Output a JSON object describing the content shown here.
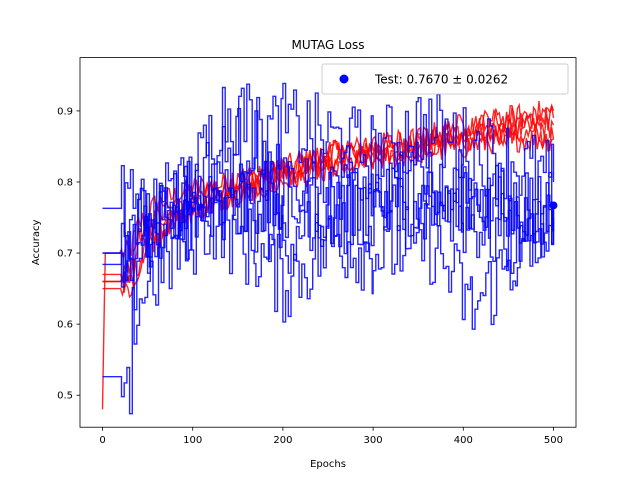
{
  "chart_data": {
    "type": "line",
    "title": "MUTAG Loss",
    "xlabel": "Epochs",
    "ylabel": "Accuracy",
    "xlim": [
      -25,
      525
    ],
    "ylim": [
      0.455,
      0.975
    ],
    "xticks": [
      0,
      100,
      200,
      300,
      400,
      500
    ],
    "yticks": [
      0.5,
      0.6,
      0.7,
      0.8,
      0.9
    ],
    "grid": false,
    "legend_position": "top-right",
    "colors": {
      "train": "#ff0000",
      "test": "#0000ff"
    },
    "test_point": {
      "x": 500,
      "y": 0.767
    },
    "legend": {
      "label": "Test: 0.7670 ± 0.0262"
    },
    "series": [
      {
        "group": "train",
        "values": [
          [
            0,
            0.48
          ],
          [
            3,
            0.7
          ],
          [
            30,
            0.7
          ],
          [
            40,
            0.74
          ],
          [
            60,
            0.77
          ],
          [
            100,
            0.79
          ],
          [
            150,
            0.8
          ],
          [
            200,
            0.82
          ],
          [
            250,
            0.84
          ],
          [
            300,
            0.85
          ],
          [
            350,
            0.86
          ],
          [
            400,
            0.86
          ],
          [
            450,
            0.87
          ],
          [
            500,
            0.88
          ]
        ]
      },
      {
        "group": "train",
        "values": [
          [
            0,
            0.67
          ],
          [
            30,
            0.67
          ],
          [
            40,
            0.72
          ],
          [
            60,
            0.75
          ],
          [
            100,
            0.77
          ],
          [
            150,
            0.79
          ],
          [
            200,
            0.81
          ],
          [
            250,
            0.82
          ],
          [
            300,
            0.84
          ],
          [
            350,
            0.85
          ],
          [
            400,
            0.86
          ],
          [
            450,
            0.87
          ],
          [
            500,
            0.86
          ]
        ]
      },
      {
        "group": "train",
        "values": [
          [
            0,
            0.66
          ],
          [
            30,
            0.66
          ],
          [
            45,
            0.7
          ],
          [
            70,
            0.74
          ],
          [
            100,
            0.76
          ],
          [
            150,
            0.78
          ],
          [
            200,
            0.8
          ],
          [
            250,
            0.82
          ],
          [
            300,
            0.83
          ],
          [
            350,
            0.84
          ],
          [
            400,
            0.85
          ],
          [
            450,
            0.86
          ],
          [
            500,
            0.86
          ]
        ]
      },
      {
        "group": "train",
        "values": [
          [
            0,
            0.65
          ],
          [
            35,
            0.65
          ],
          [
            50,
            0.72
          ],
          [
            80,
            0.75
          ],
          [
            120,
            0.77
          ],
          [
            160,
            0.79
          ],
          [
            200,
            0.81
          ],
          [
            250,
            0.83
          ],
          [
            300,
            0.84
          ],
          [
            350,
            0.85
          ],
          [
            400,
            0.87
          ],
          [
            450,
            0.89
          ],
          [
            500,
            0.9
          ]
        ]
      },
      {
        "group": "train",
        "values": [
          [
            0,
            0.66
          ],
          [
            30,
            0.66
          ],
          [
            40,
            0.73
          ],
          [
            70,
            0.76
          ],
          [
            100,
            0.78
          ],
          [
            150,
            0.8
          ],
          [
            200,
            0.82
          ],
          [
            250,
            0.84
          ],
          [
            300,
            0.85
          ],
          [
            350,
            0.86
          ],
          [
            400,
            0.88
          ],
          [
            450,
            0.89
          ],
          [
            500,
            0.89
          ]
        ]
      },
      {
        "group": "test",
        "values": [
          [
            0,
            0.526
          ],
          [
            30,
            0.526
          ],
          [
            35,
            0.65
          ],
          [
            60,
            0.75
          ],
          [
            100,
            0.8
          ],
          [
            130,
            0.9
          ],
          [
            160,
            0.89
          ],
          [
            200,
            0.78
          ],
          [
            250,
            0.75
          ],
          [
            300,
            0.76
          ],
          [
            350,
            0.8
          ],
          [
            400,
            0.75
          ],
          [
            450,
            0.72
          ],
          [
            500,
            0.75
          ]
        ]
      },
      {
        "group": "test",
        "values": [
          [
            0,
            0.763
          ],
          [
            25,
            0.763
          ],
          [
            40,
            0.79
          ],
          [
            60,
            0.7
          ],
          [
            90,
            0.75
          ],
          [
            130,
            0.74
          ],
          [
            160,
            0.77
          ],
          [
            200,
            0.72
          ],
          [
            250,
            0.8
          ],
          [
            300,
            0.78
          ],
          [
            350,
            0.76
          ],
          [
            400,
            0.79
          ],
          [
            450,
            0.76
          ],
          [
            500,
            0.763
          ]
        ]
      },
      {
        "group": "test",
        "values": [
          [
            0,
            0.684
          ],
          [
            25,
            0.684
          ],
          [
            40,
            0.73
          ],
          [
            70,
            0.76
          ],
          [
            100,
            0.79
          ],
          [
            150,
            0.85
          ],
          [
            200,
            0.88
          ],
          [
            250,
            0.86
          ],
          [
            300,
            0.84
          ],
          [
            350,
            0.88
          ],
          [
            400,
            0.85
          ],
          [
            450,
            0.83
          ],
          [
            500,
            0.8
          ]
        ]
      },
      {
        "group": "test",
        "values": [
          [
            0,
            0.7
          ],
          [
            20,
            0.7
          ],
          [
            35,
            0.62
          ],
          [
            50,
            0.66
          ],
          [
            80,
            0.7
          ],
          [
            120,
            0.75
          ],
          [
            170,
            0.7
          ],
          [
            200,
            0.66
          ],
          [
            260,
            0.72
          ],
          [
            300,
            0.7
          ],
          [
            360,
            0.72
          ],
          [
            410,
            0.62
          ],
          [
            460,
            0.7
          ],
          [
            500,
            0.74
          ]
        ]
      },
      {
        "group": "test",
        "values": [
          [
            0,
            0.7
          ],
          [
            30,
            0.7
          ],
          [
            45,
            0.75
          ],
          [
            70,
            0.77
          ],
          [
            100,
            0.78
          ],
          [
            140,
            0.79
          ],
          [
            180,
            0.77
          ],
          [
            230,
            0.78
          ],
          [
            280,
            0.76
          ],
          [
            330,
            0.78
          ],
          [
            380,
            0.76
          ],
          [
            430,
            0.78
          ],
          [
            480,
            0.76
          ],
          [
            500,
            0.76
          ]
        ]
      }
    ]
  }
}
